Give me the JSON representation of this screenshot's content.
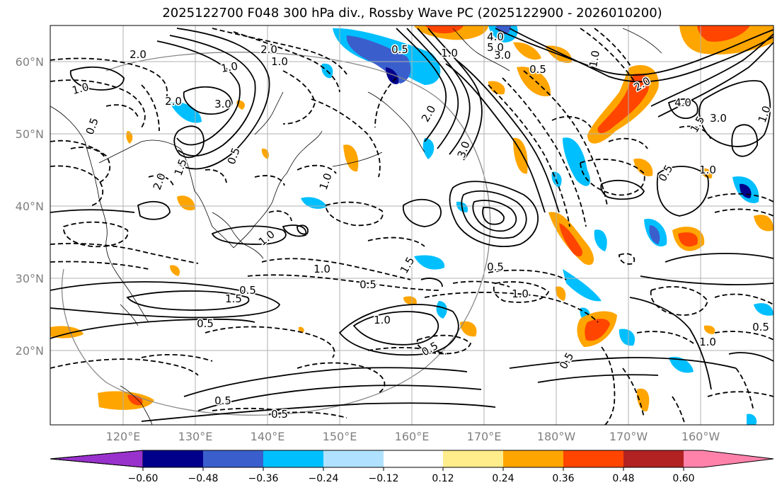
{
  "title": "2025122700 F048 300 hPa div., Rossby Wave PC (2025122900 - 2026010200)",
  "lat_ticks": [
    "60°N",
    "50°N",
    "40°N",
    "30°N",
    "20°N"
  ],
  "lon_ticks": [
    "120°E",
    "130°E",
    "140°E",
    "150°E",
    "160°E",
    "170°E",
    "180°W",
    "170°W",
    "160°W"
  ],
  "colorbar": {
    "ticks": [
      "−0.60",
      "−0.48",
      "−0.36",
      "−0.24",
      "−0.12",
      "0.12",
      "0.24",
      "0.36",
      "0.48",
      "0.60"
    ],
    "colors": [
      "#9932CC",
      "#00008B",
      "#3A5FCD",
      "#00BFFF",
      "#B0E2FF",
      "#FFFFFF",
      "#FFEC8B",
      "#FFA500",
      "#FF4500",
      "#B22222",
      "#FF82AB"
    ]
  },
  "contour_labels": [
    {
      "text": "2.0"
    },
    {
      "text": "1.0"
    },
    {
      "text": "2.0"
    },
    {
      "text": "1.0"
    },
    {
      "text": "3.0"
    },
    {
      "text": "2.0"
    },
    {
      "text": "1.0"
    },
    {
      "text": "1.0"
    },
    {
      "text": "0.5"
    },
    {
      "text": "3.0"
    },
    {
      "text": "5.0"
    },
    {
      "text": "4.0"
    },
    {
      "text": "3.0"
    },
    {
      "text": "2.0"
    },
    {
      "text": "1.0"
    },
    {
      "text": "0.5"
    },
    {
      "text": "1.0"
    },
    {
      "text": "0.5"
    },
    {
      "text": "1.5"
    },
    {
      "text": "2.0"
    },
    {
      "text": "0.5"
    },
    {
      "text": "1.0"
    },
    {
      "text": "1.5"
    },
    {
      "text": "0.5"
    },
    {
      "text": "1.0"
    },
    {
      "text": "0.5"
    },
    {
      "text": "1.0"
    },
    {
      "text": "1.5"
    },
    {
      "text": "0.5"
    },
    {
      "text": "0.5"
    },
    {
      "text": "1.0"
    },
    {
      "text": "0.5"
    },
    {
      "text": "1.0"
    },
    {
      "text": "0.5"
    },
    {
      "text": "1.0"
    },
    {
      "text": "0.5"
    },
    {
      "text": "2.0"
    },
    {
      "text": "4.0"
    },
    {
      "text": "3.0"
    },
    {
      "text": "1.5"
    },
    {
      "text": "1.0"
    },
    {
      "text": "0.5"
    },
    {
      "text": "0.5"
    },
    {
      "text": "0.5"
    }
  ]
}
